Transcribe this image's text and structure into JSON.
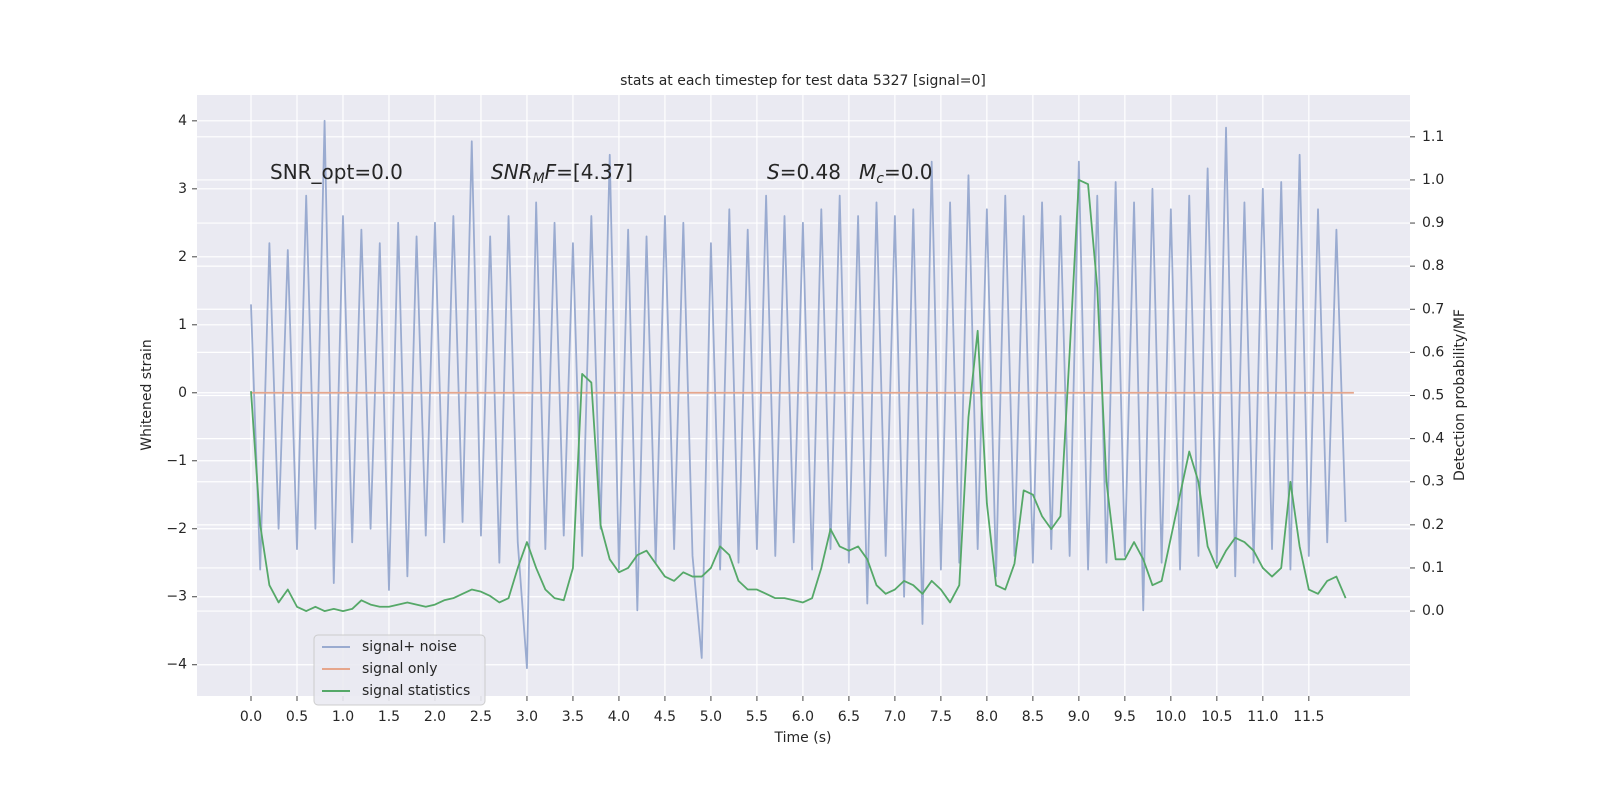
{
  "chart_data": {
    "type": "line",
    "title": "stats at each timestep for test data 5327 [signal=0]",
    "xlabel": "Time (s)",
    "ylabel": "Whitened strain",
    "y2label": "Detection probability/MF",
    "annotations": [
      {
        "parts": [
          {
            "text": "SNR_opt=0.0"
          }
        ]
      },
      {
        "parts": [
          {
            "text": "SNR",
            "italic": true
          },
          {
            "text": "M",
            "italic": true,
            "sub": true
          },
          {
            "text": "F",
            "italic": true
          },
          {
            "text": "=[4.37]"
          }
        ]
      },
      {
        "parts": [
          {
            "text": "S",
            "italic": true
          },
          {
            "text": "=0.48"
          }
        ]
      },
      {
        "parts": [
          {
            "text": "M",
            "italic": true
          },
          {
            "text": "c",
            "italic": true,
            "sub": true
          },
          {
            "text": "=0.0"
          }
        ]
      }
    ],
    "xlim": [
      -0.587,
      12.6
    ],
    "ylim": [
      -4.46,
      4.38
    ],
    "y2lim": [
      -0.197,
      1.197
    ],
    "xticks": [
      {
        "value": 0,
        "label": "0.0"
      },
      0.5,
      {
        "value": 1,
        "label": "1.0"
      },
      1.5,
      {
        "value": 2,
        "label": "2.0"
      },
      2.5,
      {
        "value": 3,
        "label": "3.0"
      },
      3.5,
      {
        "value": 4,
        "label": "4.0"
      },
      4.5,
      {
        "value": 5,
        "label": "5.0"
      },
      5.5,
      {
        "value": 6,
        "label": "6.0"
      },
      6.5,
      {
        "value": 7,
        "label": "7.0"
      },
      7.5,
      {
        "value": 8,
        "label": "8.0"
      },
      8.5,
      {
        "value": 9,
        "label": "9.0"
      },
      9.5,
      {
        "value": 10,
        "label": "10.0"
      },
      10.5,
      {
        "value": 11,
        "label": "11.0"
      },
      11.5
    ],
    "yticks": [
      {
        "value": -4,
        "label": "−4"
      },
      {
        "value": -3,
        "label": "−3"
      },
      {
        "value": -2,
        "label": "−2"
      },
      {
        "value": -1,
        "label": "−1"
      },
      0,
      1,
      2,
      3,
      4
    ],
    "y2ticks": [
      {
        "value": 0,
        "label": "0.0"
      },
      0.1,
      0.2,
      0.3,
      0.4,
      0.5,
      0.6,
      0.7,
      0.8,
      0.9,
      {
        "value": 1,
        "label": "1.0"
      },
      1.1
    ],
    "grid": true,
    "legend": "lower left",
    "x": [
      0,
      0.1,
      0.2,
      0.3,
      0.4,
      0.5,
      0.6,
      0.7,
      0.8,
      0.9,
      1,
      1.1,
      1.2,
      1.3,
      1.4,
      1.5,
      1.6,
      1.7,
      1.8,
      1.9,
      2,
      2.1,
      2.2,
      2.3,
      2.4,
      2.5,
      2.6,
      2.7,
      2.8,
      2.9,
      3,
      3.1,
      3.2,
      3.3,
      3.4,
      3.5,
      3.6,
      3.7,
      3.8,
      3.9,
      4,
      4.1,
      4.2,
      4.3,
      4.4,
      4.5,
      4.6,
      4.7,
      4.8,
      4.9,
      5,
      5.1,
      5.2,
      5.3,
      5.4,
      5.5,
      5.6,
      5.7,
      5.8,
      5.9,
      6,
      6.1,
      6.2,
      6.3,
      6.4,
      6.5,
      6.6,
      6.7,
      6.8,
      6.9,
      7,
      7.1,
      7.2,
      7.3,
      7.4,
      7.5,
      7.6,
      7.7,
      7.8,
      7.9,
      8,
      8.1,
      8.2,
      8.3,
      8.4,
      8.5,
      8.6,
      8.7,
      8.8,
      8.9,
      9,
      9.1,
      9.2,
      9.3,
      9.4,
      9.5,
      9.6,
      9.7,
      9.8,
      9.9,
      10,
      10.1,
      10.2,
      10.3,
      10.4,
      10.5,
      10.6,
      10.7,
      10.8,
      10.9,
      11,
      11.1,
      11.2,
      11.3,
      11.4,
      11.5,
      11.6,
      11.7,
      11.8,
      11.9
    ],
    "series": [
      {
        "name": "signal+ noise",
        "color": "#9aabd0",
        "values": [
          1.3,
          -2.6,
          2.2,
          -2.0,
          2.1,
          -2.3,
          2.9,
          -2.0,
          4.0,
          -2.8,
          2.6,
          -2.2,
          2.4,
          -2.0,
          2.2,
          -2.9,
          2.5,
          -2.7,
          2.3,
          -2.1,
          2.5,
          -2.2,
          2.6,
          -1.9,
          3.7,
          -2.1,
          2.3,
          -2.5,
          2.6,
          -2.2,
          -4.05,
          2.8,
          -2.3,
          2.5,
          -2.1,
          2.2,
          -2.4,
          2.6,
          -2.0,
          3.5,
          -2.6,
          2.4,
          -3.2,
          2.3,
          -2.5,
          2.6,
          -2.3,
          2.5,
          -2.4,
          -3.9,
          2.2,
          -2.6,
          2.7,
          -2.5,
          2.4,
          -2.3,
          2.9,
          -2.4,
          2.6,
          -2.2,
          2.5,
          -2.6,
          2.7,
          -2.3,
          2.9,
          -2.5,
          2.6,
          -3.1,
          2.8,
          -2.4,
          2.6,
          -3.0,
          2.7,
          -3.4,
          3.4,
          -2.6,
          2.8,
          -2.5,
          3.2,
          -2.3,
          2.7,
          -2.7,
          2.9,
          -2.4,
          2.6,
          -2.5,
          2.8,
          -2.3,
          2.6,
          -2.4,
          3.4,
          -2.6,
          2.9,
          -2.5,
          3.1,
          -2.4,
          2.8,
          -3.2,
          3.0,
          -2.5,
          2.7,
          -2.6,
          2.9,
          -2.4,
          3.3,
          -2.5,
          3.9,
          -2.7,
          2.8,
          -2.5,
          3.0,
          -2.3,
          3.1,
          -2.6,
          3.5,
          -2.4,
          2.7,
          -2.2,
          2.4,
          -1.9
        ]
      },
      {
        "name": "signal only",
        "color": "#e6a68c",
        "x": [
          0,
          11.99
        ],
        "values": [
          0,
          0
        ]
      },
      {
        "name": "signal statistics",
        "color": "#55a868",
        "axis": "y2",
        "values": [
          0.51,
          0.2,
          0.06,
          0.02,
          0.05,
          0.01,
          0.0,
          0.01,
          0.0,
          0.005,
          0.0,
          0.005,
          0.025,
          0.015,
          0.01,
          0.01,
          0.015,
          0.02,
          0.015,
          0.01,
          0.015,
          0.025,
          0.03,
          0.04,
          0.05,
          0.045,
          0.035,
          0.02,
          0.03,
          0.1,
          0.16,
          0.1,
          0.05,
          0.03,
          0.025,
          0.1,
          0.55,
          0.53,
          0.2,
          0.12,
          0.09,
          0.1,
          0.13,
          0.14,
          0.11,
          0.08,
          0.07,
          0.09,
          0.08,
          0.08,
          0.1,
          0.15,
          0.13,
          0.07,
          0.05,
          0.05,
          0.04,
          0.03,
          0.03,
          0.025,
          0.02,
          0.03,
          0.1,
          0.19,
          0.15,
          0.14,
          0.15,
          0.12,
          0.06,
          0.04,
          0.05,
          0.07,
          0.06,
          0.04,
          0.07,
          0.05,
          0.02,
          0.06,
          0.45,
          0.65,
          0.25,
          0.06,
          0.05,
          0.11,
          0.28,
          0.27,
          0.22,
          0.19,
          0.22,
          0.6,
          1.0,
          0.99,
          0.75,
          0.3,
          0.12,
          0.12,
          0.16,
          0.12,
          0.06,
          0.07,
          0.17,
          0.27,
          0.37,
          0.3,
          0.15,
          0.1,
          0.14,
          0.17,
          0.16,
          0.14,
          0.1,
          0.08,
          0.1,
          0.3,
          0.15,
          0.05,
          0.04,
          0.07,
          0.08,
          0.03
        ]
      }
    ]
  }
}
